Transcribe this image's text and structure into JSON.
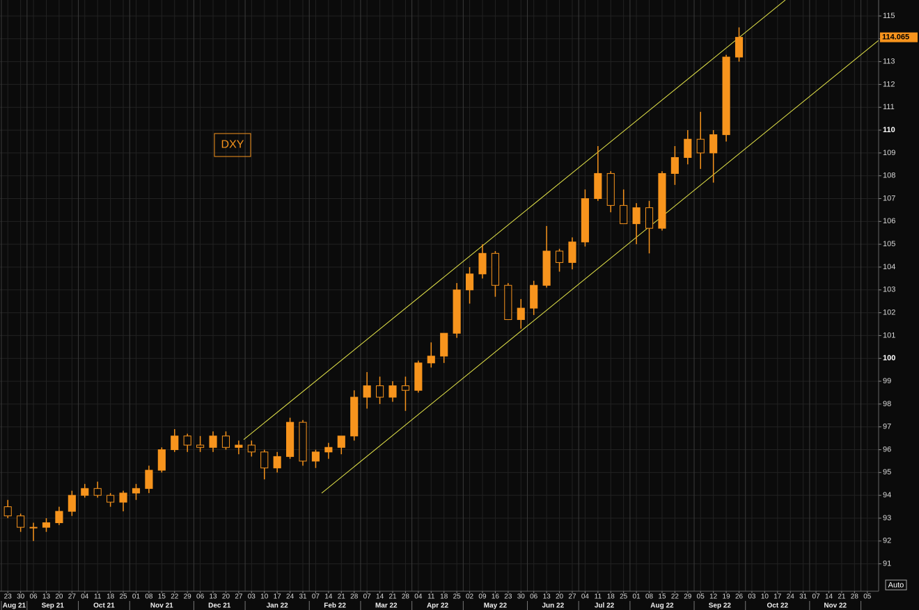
{
  "chart_data": {
    "type": "candlestick",
    "title": "DXY",
    "color": "#f7941d",
    "grid": true,
    "auto_button": "Auto",
    "categories": [
      "23",
      "30",
      "06",
      "13",
      "20",
      "27",
      "04",
      "11",
      "18",
      "25",
      "01",
      "08",
      "15",
      "22",
      "29",
      "06",
      "13",
      "20",
      "27",
      "03",
      "10",
      "17",
      "24",
      "31",
      "07",
      "14",
      "21",
      "28",
      "07",
      "14",
      "21",
      "28",
      "04",
      "11",
      "18",
      "25",
      "02",
      "09",
      "16",
      "23",
      "30",
      "06",
      "13",
      "20",
      "27",
      "04",
      "11",
      "18",
      "25",
      "01",
      "08",
      "15",
      "22",
      "29",
      "05",
      "12",
      "19",
      "26",
      "03",
      "10",
      "17",
      "24",
      "31",
      "07",
      "14",
      "21",
      "28",
      "05"
    ],
    "months": [
      "Aug 21",
      "Sep 21",
      "Oct 21",
      "Nov 21",
      "Dec 21",
      "Jan 22",
      "Feb 22",
      "Mar 22",
      "Apr 22",
      "May 22",
      "Jun 22",
      "Jul 22",
      "Aug 22",
      "Sep 22",
      "Oct 22",
      "Nov 22"
    ],
    "open": [
      93.5,
      93.1,
      92.6,
      92.6,
      92.8,
      93.3,
      94.0,
      94.3,
      94.0,
      93.7,
      94.1,
      94.3,
      95.1,
      96.0,
      96.6,
      96.2,
      96.1,
      96.6,
      96.1,
      96.2,
      95.9,
      95.2,
      95.7,
      97.2,
      95.5,
      95.9,
      96.1,
      96.6,
      98.3,
      98.8,
      98.3,
      98.8,
      98.6,
      99.8,
      100.1,
      101.1,
      103.0,
      103.7,
      104.6,
      103.2,
      101.7,
      102.2,
      103.2,
      104.7,
      104.2,
      105.1,
      107.0,
      108.1,
      106.7,
      105.9,
      106.6,
      105.7,
      108.1,
      108.8,
      109.6,
      109.0,
      109.8,
      113.2,
      null,
      null,
      null,
      null,
      null,
      null,
      null,
      null,
      null,
      null
    ],
    "high": [
      93.8,
      93.2,
      92.8,
      93.0,
      93.5,
      94.2,
      94.5,
      94.6,
      94.1,
      94.2,
      94.5,
      95.3,
      96.1,
      96.9,
      96.7,
      96.6,
      96.8,
      96.8,
      96.4,
      96.4,
      96.0,
      95.9,
      97.4,
      97.3,
      96.0,
      96.3,
      96.6,
      98.6,
      99.4,
      99.2,
      99.0,
      99.2,
      99.9,
      100.7,
      101.1,
      103.3,
      104.0,
      105.0,
      104.7,
      103.3,
      102.6,
      103.4,
      105.8,
      104.8,
      105.3,
      107.4,
      109.3,
      108.2,
      107.4,
      106.8,
      106.9,
      108.2,
      109.3,
      110.0,
      110.8,
      110.0,
      113.3,
      114.5,
      null,
      null,
      null,
      null,
      null,
      null,
      null,
      null,
      null,
      null
    ],
    "low": [
      93.0,
      92.4,
      92.0,
      92.4,
      92.7,
      93.1,
      93.9,
      93.9,
      93.5,
      93.3,
      93.8,
      94.1,
      95.0,
      95.9,
      95.9,
      95.9,
      95.9,
      96.0,
      95.8,
      95.7,
      94.7,
      95.0,
      95.6,
      95.3,
      95.2,
      95.6,
      95.8,
      96.4,
      97.8,
      98.0,
      98.1,
      97.7,
      98.5,
      99.6,
      99.8,
      100.9,
      102.4,
      103.5,
      102.7,
      101.7,
      101.3,
      101.9,
      103.1,
      103.8,
      103.9,
      104.9,
      106.9,
      106.4,
      105.9,
      105.0,
      104.6,
      105.6,
      107.6,
      108.5,
      108.3,
      107.7,
      109.5,
      113.0,
      null,
      null,
      null,
      null,
      null,
      null,
      null,
      null,
      null,
      null
    ],
    "close": [
      93.1,
      92.6,
      92.6,
      92.8,
      93.3,
      94.0,
      94.3,
      94.0,
      93.7,
      94.1,
      94.3,
      95.1,
      96.0,
      96.6,
      96.2,
      96.1,
      96.6,
      96.1,
      96.2,
      95.9,
      95.2,
      95.7,
      97.2,
      95.5,
      95.9,
      96.1,
      96.6,
      98.3,
      98.8,
      98.3,
      98.8,
      98.6,
      99.8,
      100.1,
      101.1,
      103.0,
      103.7,
      104.6,
      103.2,
      101.7,
      102.2,
      103.2,
      104.7,
      104.2,
      105.1,
      107.0,
      108.1,
      106.7,
      105.9,
      106.6,
      105.7,
      108.1,
      108.8,
      109.6,
      109.0,
      109.8,
      113.2,
      114.065,
      null,
      null,
      null,
      null,
      null,
      null,
      null,
      null,
      null,
      null
    ],
    "ylim": [
      89.8,
      115.7
    ],
    "yticks": [
      91,
      92,
      93,
      94,
      95,
      96,
      97,
      98,
      99,
      100,
      101,
      102,
      103,
      104,
      105,
      106,
      107,
      108,
      109,
      110,
      111,
      112,
      113,
      114,
      115
    ]
  }
}
